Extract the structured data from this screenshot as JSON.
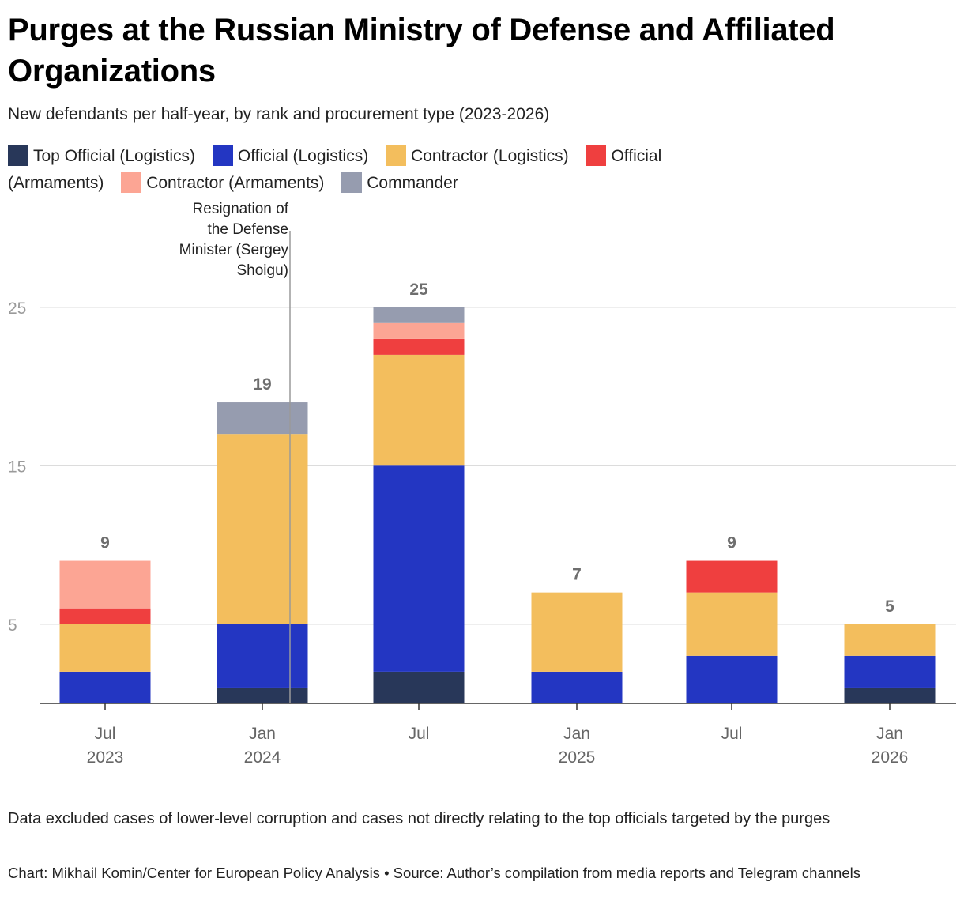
{
  "title": "Purges at the Russian Ministry of Defense and Affiliated Organizations",
  "subtitle": "New defendants per half-year, by rank and procurement type (2023-2026)",
  "legend": [
    {
      "label": "Top Official (Logistics)",
      "color": "#283759"
    },
    {
      "label": "Official (Logistics)",
      "color": "#2336c2"
    },
    {
      "label": "Contractor (Logistics)",
      "color": "#f3be5d"
    },
    {
      "label": "Official (Armaments)",
      "color": "#ef3f3f"
    },
    {
      "label": "Contractor (Armaments)",
      "color": "#fca594"
    },
    {
      "label": "Commander",
      "color": "#969caf"
    }
  ],
  "chart_data": {
    "type": "bar",
    "stacked": true,
    "categories": [
      {
        "line1": "Jul",
        "line2": "2023"
      },
      {
        "line1": "Jan",
        "line2": "2024"
      },
      {
        "line1": "Jul",
        "line2": ""
      },
      {
        "line1": "Jan",
        "line2": "2025"
      },
      {
        "line1": "Jul",
        "line2": ""
      },
      {
        "line1": "Jan",
        "line2": "2026"
      }
    ],
    "series": [
      {
        "name": "Top Official (Logistics)",
        "color": "#283759",
        "values": [
          0,
          1,
          2,
          0,
          0,
          1
        ]
      },
      {
        "name": "Official (Logistics)",
        "color": "#2336c2",
        "values": [
          2,
          4,
          13,
          2,
          3,
          2
        ]
      },
      {
        "name": "Contractor (Logistics)",
        "color": "#f3be5d",
        "values": [
          3,
          12,
          7,
          5,
          4,
          2
        ]
      },
      {
        "name": "Official (Armaments)",
        "color": "#ef3f3f",
        "values": [
          1,
          0,
          1,
          0,
          2,
          0
        ]
      },
      {
        "name": "Contractor (Armaments)",
        "color": "#fca594",
        "values": [
          3,
          0,
          1,
          0,
          0,
          0
        ]
      },
      {
        "name": "Commander",
        "color": "#969caf",
        "values": [
          0,
          2,
          1,
          0,
          0,
          0
        ]
      }
    ],
    "totals": [
      "9",
      "19",
      "25",
      "7",
      "9",
      "5"
    ],
    "y_ticks": [
      "5",
      "15",
      "25"
    ],
    "y_tick_values": [
      5,
      15,
      25
    ],
    "ylim": [
      0,
      25
    ],
    "grid": true,
    "annotation": {
      "lines": [
        "Resignation of",
        "the Defense",
        "Minister (Sergey",
        "Shoigu)"
      ],
      "x_position": "between Jan 2024 and Jul 2024"
    }
  },
  "note": "Data excluded cases of lower-level corruption and cases not directly relating to the top officials targeted by the purges",
  "credit": "Chart: Mikhail Komin/Center for European Policy Analysis • Source: Author’s compilation from media reports and Telegram channels"
}
